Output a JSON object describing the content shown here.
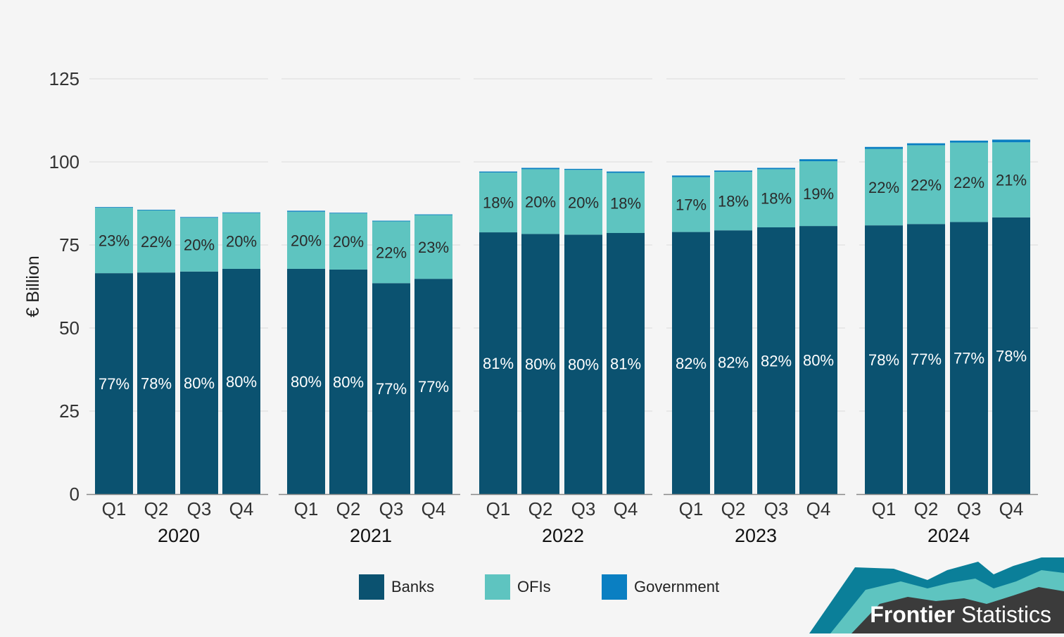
{
  "chart_data": {
    "type": "bar",
    "stacked": true,
    "ylabel": "€ Billion",
    "ylim": [
      0,
      125
    ],
    "yticks": [
      0,
      25,
      50,
      75,
      100,
      125
    ],
    "grid": true,
    "years": [
      "2020",
      "2021",
      "2022",
      "2023",
      "2024"
    ],
    "quarters": [
      "Q1",
      "Q2",
      "Q3",
      "Q4"
    ],
    "series": [
      {
        "name": "Banks",
        "color": "#0b5270",
        "values": [
          66.5,
          66.7,
          67.0,
          67.8,
          67.8,
          67.6,
          63.5,
          64.8,
          78.8,
          78.3,
          78.1,
          78.6,
          78.9,
          79.4,
          80.3,
          80.7,
          80.9,
          81.3,
          81.9,
          83.3
        ],
        "labels": [
          "77%",
          "78%",
          "80%",
          "80%",
          "80%",
          "80%",
          "77%",
          "77%",
          "81%",
          "80%",
          "80%",
          "81%",
          "82%",
          "82%",
          "82%",
          "80%",
          "78%",
          "77%",
          "77%",
          "78%"
        ]
      },
      {
        "name": "OFIs",
        "color": "#5ec4c0",
        "values": [
          19.7,
          18.7,
          16.2,
          16.8,
          17.2,
          16.9,
          18.6,
          19.2,
          18.0,
          19.5,
          19.5,
          18.1,
          16.5,
          17.6,
          17.5,
          19.5,
          23.0,
          23.7,
          23.9,
          22.6
        ],
        "labels": [
          "23%",
          "22%",
          "20%",
          "20%",
          "20%",
          "20%",
          "22%",
          "23%",
          "18%",
          "20%",
          "20%",
          "18%",
          "17%",
          "18%",
          "18%",
          "19%",
          "22%",
          "22%",
          "22%",
          "21%"
        ]
      },
      {
        "name": "Government",
        "color": "#0a7fc2",
        "values": [
          0.2,
          0.2,
          0.2,
          0.2,
          0.3,
          0.2,
          0.2,
          0.2,
          0.3,
          0.4,
          0.3,
          0.4,
          0.5,
          0.4,
          0.4,
          0.6,
          0.6,
          0.6,
          0.6,
          0.8
        ],
        "labels": [
          "",
          "",
          "",
          "",
          "",
          "",
          "",
          "",
          "",
          "",
          "",
          "",
          "",
          "",
          "",
          "",
          "",
          "",
          "",
          ""
        ]
      }
    ]
  },
  "legend": [
    {
      "label": "Banks",
      "color": "#0b5270"
    },
    {
      "label": "OFIs",
      "color": "#5ec4c0"
    },
    {
      "label": "Government",
      "color": "#0a7fc2"
    }
  ],
  "brand": {
    "name_bold": "Frontier",
    "name_regular": "Statistics",
    "colors": [
      "#0b7f99",
      "#5ec4c0",
      "#3b3b3b"
    ]
  }
}
